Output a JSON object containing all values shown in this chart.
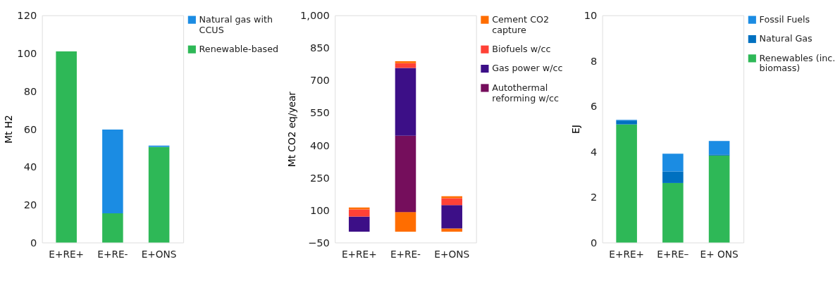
{
  "chart_data": [
    {
      "type": "bar",
      "stacked": true,
      "ylabel": "Mt H2",
      "categories": [
        "E+RE+",
        "E+RE-",
        "E+ONS"
      ],
      "ylim": [
        0,
        120
      ],
      "yticks": [
        0,
        20,
        40,
        60,
        80,
        100,
        120
      ],
      "grid": false,
      "legend": "right",
      "series": [
        {
          "name": "Renewable-based",
          "color": "#2eb857",
          "values": [
            101,
            15.4,
            50.5
          ]
        },
        {
          "name": "Natural gas with CCUS",
          "color": "#1b8ce3",
          "values": [
            0,
            44.3,
            0.7
          ]
        }
      ]
    },
    {
      "type": "bar",
      "stacked": true,
      "ylabel": "Mt CO2 eq/year",
      "categories": [
        "E+RE+",
        "E+RE-",
        "E+ONS"
      ],
      "ylim": [
        -50,
        1000
      ],
      "yticks": [
        -50,
        100,
        250,
        400,
        550,
        700,
        850,
        {
          "value": 1000,
          "label": "1,000"
        }
      ],
      "grid": false,
      "legend": "right",
      "series": [
        {
          "color": "#ff6d00",
          "values": [
            0,
            91,
            15
          ]
        },
        {
          "name": "Autothermal reforming w/cc",
          "color": "#750e5c",
          "values": [
            0,
            353,
            0
          ]
        },
        {
          "name": "Gas power w/cc",
          "color": "#3c0f87",
          "values": [
            70,
            313,
            108
          ]
        },
        {
          "name": "Biofuels w/cc",
          "color": "#ff4136",
          "values": [
            33,
            22,
            32
          ]
        },
        {
          "name": "Cement CO2 capture",
          "color": "#ff6d00",
          "values": [
            9,
            9,
            9
          ]
        }
      ]
    },
    {
      "type": "bar",
      "stacked": true,
      "ylabel": "EJ",
      "categories": [
        "E+RE+",
        "E+RE–",
        "E+ ONS"
      ],
      "ylim": [
        0,
        10
      ],
      "yticks": [
        0,
        2,
        4,
        6,
        8,
        10
      ],
      "grid": false,
      "legend": "right",
      "series": [
        {
          "name": "Renewables (inc. biomass)",
          "color": "#2eb857",
          "values": [
            5.2,
            2.62,
            3.83
          ]
        },
        {
          "name": "Natural Gas",
          "color": "#0070c0",
          "values": [
            0.17,
            0.51,
            0.05
          ]
        },
        {
          "name": "Fossil Fuels",
          "color": "#1b8ce3",
          "values": [
            0.03,
            0.78,
            0.59
          ]
        }
      ]
    }
  ]
}
